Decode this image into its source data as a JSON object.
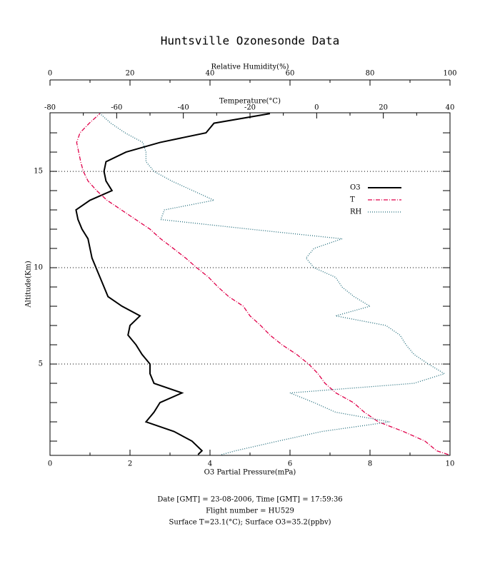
{
  "chart_data": {
    "type": "line",
    "title": "Huntsville Ozonesonde Data",
    "xlabel": "O3 Partial Pressure(mPa)",
    "ylabel": "Altitude(Km)",
    "xlim": [
      0,
      10
    ],
    "xticks": [
      0,
      2,
      4,
      6,
      8,
      10
    ],
    "xminorticks": [
      1,
      3,
      5,
      7,
      9
    ],
    "x2label": "Temperature(°C)",
    "x2lim": [
      -80,
      40
    ],
    "x2ticks": [
      -80,
      -60,
      -40,
      -20,
      0,
      20,
      40
    ],
    "x2minorticks": [
      -70,
      -50,
      -30,
      -10,
      10,
      30
    ],
    "x3label": "Relative Humidity(%)",
    "x3lim": [
      0,
      100
    ],
    "x3ticks": [
      0,
      20,
      40,
      60,
      80,
      100
    ],
    "x3minorticks": [
      10,
      30,
      50,
      70,
      90
    ],
    "ylim": [
      0.26,
      18.04
    ],
    "yticks": [
      5,
      10,
      15
    ],
    "yminorticks": [
      1,
      2,
      3,
      4,
      6,
      7,
      8,
      9,
      11,
      12,
      13,
      14,
      16,
      17
    ],
    "grid": true,
    "y": [
      0.3,
      0.5,
      1,
      1.5,
      2,
      2.5,
      3,
      3.5,
      4,
      4.5,
      5,
      5.5,
      6,
      6.5,
      7,
      7.5,
      8,
      8.5,
      9,
      9.5,
      10,
      10.5,
      11,
      11.5,
      12,
      12.5,
      13,
      13.5,
      14,
      14.5,
      15,
      15.5,
      16,
      16.5,
      17,
      17.5,
      18
    ],
    "series": [
      {
        "name": "O3",
        "color": "#000000",
        "dash": "solid",
        "axis": "x",
        "values": [
          3.7,
          3.8,
          3.55,
          3.1,
          2.4,
          2.6,
          2.75,
          3.3,
          2.6,
          2.5,
          2.5,
          2.3,
          2.15,
          1.95,
          2.0,
          2.25,
          1.8,
          1.45,
          1.35,
          1.25,
          1.15,
          1.05,
          1.0,
          0.95,
          0.8,
          0.7,
          0.65,
          1.0,
          1.55,
          1.4,
          1.35,
          1.4,
          1.9,
          2.75,
          3.9,
          4.1,
          5.5
        ]
      },
      {
        "name": "T",
        "color": "#e0004a",
        "dash": "dashdot",
        "axis": "x2",
        "values": [
          39.5,
          36,
          32.5,
          26,
          18.5,
          14.3,
          11,
          5.8,
          2.5,
          0.4,
          -2.4,
          -6,
          -10.4,
          -14,
          -16.8,
          -20,
          -22,
          -26.4,
          -29.6,
          -32.4,
          -36,
          -39.3,
          -43,
          -46.8,
          -50,
          -54.3,
          -58.6,
          -62.9,
          -66,
          -68.6,
          -70,
          -70.8,
          -71.4,
          -72,
          -71,
          -68.2,
          -65
        ]
      },
      {
        "name": "RH",
        "color": "#1f6b7a",
        "dash": "dotted",
        "axis": "x3",
        "values": [
          42.9,
          46.4,
          57,
          68,
          85,
          71.4,
          66,
          60,
          91,
          98.6,
          94.6,
          91,
          89,
          87.5,
          84,
          71.4,
          80,
          76,
          73,
          71.4,
          66,
          64,
          66,
          73,
          50,
          27.7,
          28.6,
          41,
          35.7,
          30.4,
          26,
          24,
          24,
          23.2,
          18.75,
          15.2,
          12.5
        ]
      }
    ],
    "legend": "right",
    "footer_lines": [
      "Date [GMT] = 23-08-2006,  Time [GMT] = 17:59:36",
      "Flight number = HU529",
      "Surface T=23.1(°C); Surface O3=35.2(ppbv)"
    ]
  }
}
